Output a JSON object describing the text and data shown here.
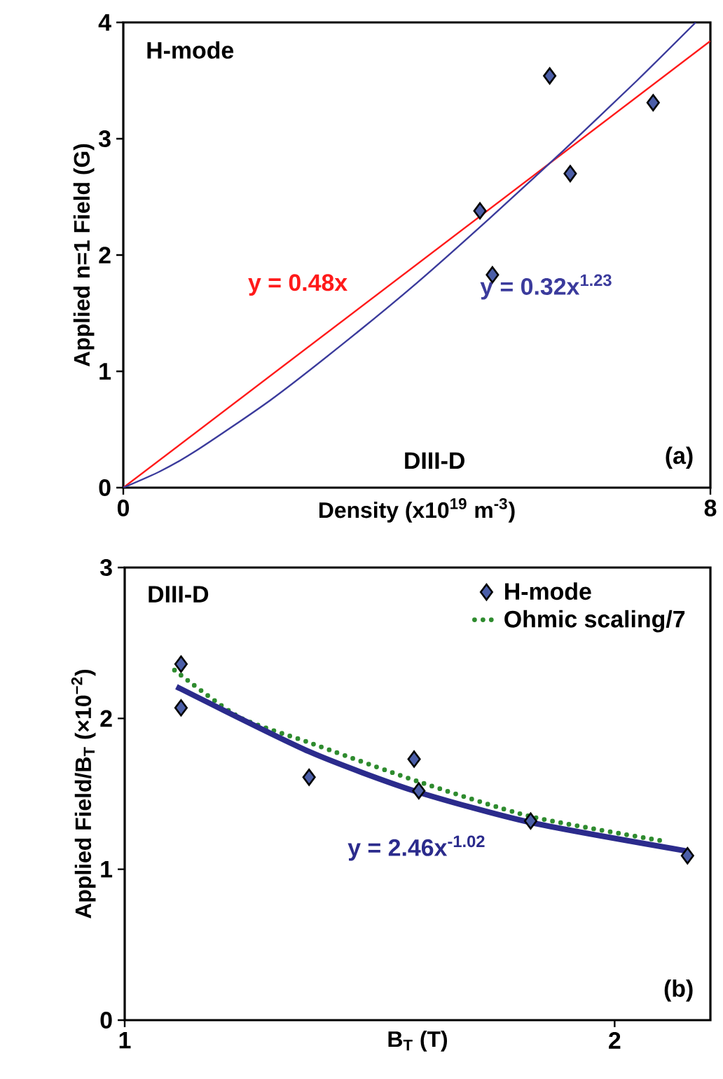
{
  "chart_data": [
    {
      "type": "scatter",
      "xlabel": "Density (x10$^{19}$ m$^{-3}$)",
      "ylabel": "Applied n=1 Field (G)",
      "xlim": [
        0,
        8
      ],
      "xticks": [
        0,
        8
      ],
      "ylim": [
        0,
        4
      ],
      "yticks": [
        0,
        1,
        2,
        3,
        4
      ],
      "annotations": [
        "H-mode",
        "DIII-D",
        "(a)"
      ],
      "series": [
        {
          "color": "#4b5ea8",
          "marker": "diamond",
          "x": [
            4.86,
            5.03,
            5.81,
            6.09,
            7.22
          ],
          "values": [
            2.38,
            1.83,
            3.54,
            2.7,
            3.31
          ]
        },
        {
          "type": "line",
          "name": "y = 0.48x",
          "color": "#ff1a1a",
          "line_style": "solid",
          "x": [
            0,
            8
          ],
          "values": [
            0,
            3.84
          ]
        },
        {
          "type": "line",
          "name": "y = 0.32x$^{1.23}$",
          "color": "#3b3b9c",
          "line_style": "solid",
          "x": [
            0,
            0.5,
            1,
            2,
            3,
            4,
            5,
            6,
            7,
            7.8
          ],
          "values": [
            0,
            0.14,
            0.32,
            0.75,
            1.24,
            1.76,
            2.32,
            2.9,
            3.5,
            4.0
          ]
        }
      ]
    },
    {
      "type": "scatter",
      "xlabel": "B$_{T}$ (T)",
      "ylabel": "Applied Field/B$_{T}$ (×10$^{−2}$)",
      "log": "x",
      "xlim": [
        1,
        2.29
      ],
      "xticks": [
        1,
        2
      ],
      "ylim": [
        0,
        3
      ],
      "yticks": [
        0,
        1,
        2,
        3
      ],
      "legend": "top right",
      "annotations": [
        "DIII-D",
        "(b)"
      ],
      "series": [
        {
          "name": "H-mode",
          "color": "#4b5ea8",
          "marker": "diamond",
          "x": [
            1.083,
            1.083,
            1.298,
            1.506,
            1.516,
            1.776,
            2.217
          ],
          "values": [
            2.36,
            2.07,
            1.61,
            1.73,
            1.52,
            1.32,
            1.09
          ]
        },
        {
          "type": "line",
          "name": "Ohmic scaling/7",
          "color": "#2e8b2e",
          "line_style": "dotted",
          "x": [
            1.073,
            1.175,
            1.298,
            1.516,
            1.776,
            2.135
          ],
          "values": [
            2.32,
            2.01,
            1.84,
            1.58,
            1.35,
            1.19
          ]
        },
        {
          "type": "line",
          "name": "y = 2.46x$^{-1.02}$",
          "color": "#2b2b8c",
          "line_style": "solid",
          "x": [
            1.076,
            1.298,
            1.506,
            1.776,
            2.217
          ],
          "values": [
            2.21,
            1.78,
            1.52,
            1.31,
            1.12
          ]
        }
      ]
    }
  ]
}
